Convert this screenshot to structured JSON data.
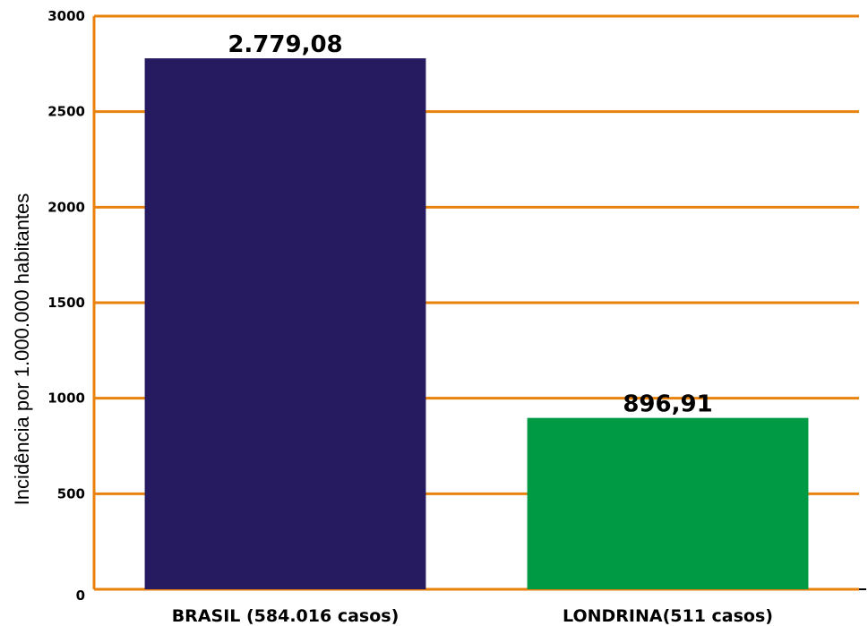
{
  "chart_data": {
    "type": "bar",
    "categories": [
      "BRASIL (584.016 casos)",
      "LONDRINA(511 casos)"
    ],
    "values": [
      2779.08,
      896.91
    ],
    "data_labels": [
      "2.779,08",
      "896,91"
    ],
    "colors": [
      "#261b60",
      "#009a44"
    ],
    "title": "",
    "xlabel": "",
    "ylabel": "Incidência por 1.000.000 habitantes",
    "ylim": [
      0,
      3000
    ],
    "yticks": [
      "0",
      "500",
      "1000",
      "1500",
      "2000",
      "2500",
      "3000"
    ],
    "grid": true,
    "grid_color": "#e8820c"
  }
}
